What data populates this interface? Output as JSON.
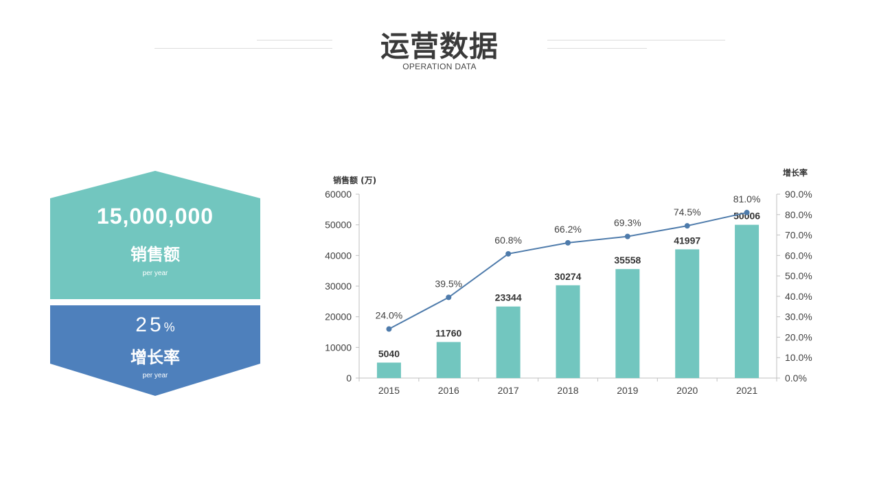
{
  "header": {
    "title": "运营数据",
    "subtitle": "OPERATION DATA"
  },
  "stats": {
    "sales_value": "15,000,000",
    "sales_label": "销售额",
    "sales_sub": "per year",
    "growth_value": "25",
    "growth_unit": "%",
    "growth_label": "增长率",
    "growth_sub": "per year"
  },
  "colors": {
    "teal": "#72c6bf",
    "blue": "#4e80bc",
    "line": "#4e7bab",
    "axis": "#bfbfbf"
  },
  "chart_data": {
    "type": "bar",
    "title": "",
    "categories": [
      "2015",
      "2016",
      "2017",
      "2018",
      "2019",
      "2020",
      "2021"
    ],
    "ylabel": "销售额 (万)",
    "y2label": "增长率",
    "ylim": [
      0,
      60000
    ],
    "y2lim": [
      0,
      0.9
    ],
    "yticks": [
      "0",
      "10000",
      "20000",
      "30000",
      "40000",
      "50000",
      "60000"
    ],
    "y2ticks": [
      "0.0%",
      "10.0%",
      "20.0%",
      "30.0%",
      "40.0%",
      "50.0%",
      "60.0%",
      "70.0%",
      "80.0%",
      "90.0%"
    ],
    "grid": false,
    "series": [
      {
        "type": "bar",
        "axis": "left",
        "values": [
          5040,
          11760,
          23344,
          30274,
          35558,
          41997,
          50006
        ]
      },
      {
        "type": "line",
        "axis": "right",
        "values": [
          0.24,
          0.395,
          0.608,
          0.662,
          0.693,
          0.745,
          0.81
        ],
        "labels": [
          "24.0%",
          "39.5%",
          "60.8%",
          "66.2%",
          "69.3%",
          "74.5%",
          "81.0%"
        ]
      }
    ]
  }
}
